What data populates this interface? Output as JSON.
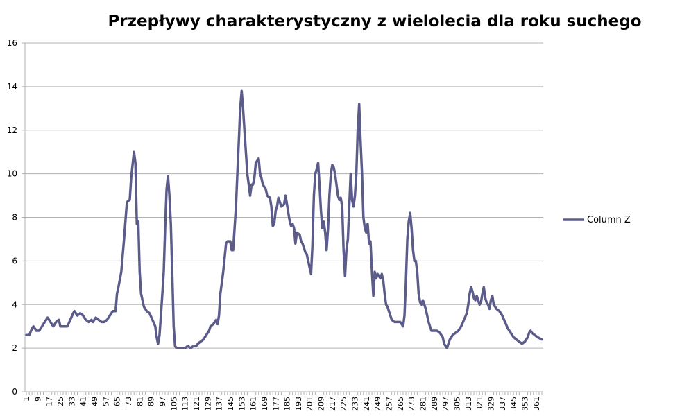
{
  "chart_data": {
    "type": "line",
    "title": "Przepływy charakterystyczny z wielolecia dla roku suchego",
    "xlabel": "",
    "ylabel": "",
    "ylim": [
      0,
      16
    ],
    "y_ticks": [
      "0",
      "2",
      "4",
      "6",
      "8",
      "10",
      "12",
      "14",
      "16"
    ],
    "x_range": [
      1,
      365
    ],
    "x_tick_labels": [
      "1",
      "9",
      "17",
      "25",
      "33",
      "41",
      "49",
      "57",
      "65",
      "73",
      "81",
      "89",
      "97",
      "105",
      "113",
      "121",
      "129",
      "137",
      "145",
      "153",
      "161",
      "169",
      "177",
      "185",
      "193",
      "201",
      "209",
      "217",
      "225",
      "233",
      "241",
      "249",
      "257",
      "265",
      "273",
      "281",
      "289",
      "297",
      "305",
      "313",
      "321",
      "329",
      "337",
      "345",
      "353",
      "361"
    ],
    "grid": "horizontal",
    "legend_position": "right",
    "series": [
      {
        "name": "Column Z",
        "color": "#5c5c8a",
        "points": [
          [
            1,
            2.6
          ],
          [
            3,
            2.6
          ],
          [
            5,
            2.9
          ],
          [
            6,
            3.0
          ],
          [
            8,
            2.8
          ],
          [
            10,
            2.8
          ],
          [
            12,
            3.0
          ],
          [
            14,
            3.2
          ],
          [
            16,
            3.4
          ],
          [
            18,
            3.2
          ],
          [
            20,
            3.0
          ],
          [
            22,
            3.2
          ],
          [
            24,
            3.3
          ],
          [
            25,
            3.0
          ],
          [
            27,
            3.0
          ],
          [
            29,
            3.0
          ],
          [
            30,
            3.0
          ],
          [
            32,
            3.3
          ],
          [
            34,
            3.6
          ],
          [
            35,
            3.7
          ],
          [
            37,
            3.5
          ],
          [
            39,
            3.6
          ],
          [
            41,
            3.5
          ],
          [
            43,
            3.3
          ],
          [
            45,
            3.2
          ],
          [
            47,
            3.3
          ],
          [
            48,
            3.2
          ],
          [
            50,
            3.4
          ],
          [
            52,
            3.3
          ],
          [
            54,
            3.2
          ],
          [
            56,
            3.2
          ],
          [
            58,
            3.3
          ],
          [
            60,
            3.5
          ],
          [
            62,
            3.7
          ],
          [
            64,
            3.7
          ],
          [
            65,
            4.5
          ],
          [
            66,
            4.8
          ],
          [
            68,
            5.5
          ],
          [
            70,
            7.0
          ],
          [
            72,
            8.7
          ],
          [
            74,
            8.8
          ],
          [
            75,
            9.8
          ],
          [
            77,
            11.0
          ],
          [
            78,
            10.5
          ],
          [
            79,
            7.7
          ],
          [
            80,
            7.8
          ],
          [
            81,
            5.5
          ],
          [
            82,
            4.5
          ],
          [
            84,
            3.9
          ],
          [
            86,
            3.7
          ],
          [
            88,
            3.6
          ],
          [
            90,
            3.3
          ],
          [
            92,
            3.0
          ],
          [
            93,
            2.5
          ],
          [
            94,
            2.2
          ],
          [
            95,
            2.6
          ],
          [
            96,
            3.5
          ],
          [
            97,
            4.5
          ],
          [
            98,
            5.5
          ],
          [
            99,
            7.5
          ],
          [
            100,
            9.3
          ],
          [
            101,
            9.9
          ],
          [
            102,
            9.0
          ],
          [
            103,
            7.7
          ],
          [
            104,
            5.5
          ],
          [
            105,
            3.0
          ],
          [
            106,
            2.1
          ],
          [
            107,
            2.0
          ],
          [
            110,
            2.0
          ],
          [
            113,
            2.0
          ],
          [
            115,
            2.1
          ],
          [
            117,
            2.0
          ],
          [
            119,
            2.1
          ],
          [
            121,
            2.1
          ],
          [
            122,
            2.2
          ],
          [
            124,
            2.3
          ],
          [
            126,
            2.4
          ],
          [
            128,
            2.6
          ],
          [
            130,
            2.8
          ],
          [
            131,
            3.0
          ],
          [
            133,
            3.1
          ],
          [
            135,
            3.3
          ],
          [
            136,
            3.1
          ],
          [
            137,
            3.5
          ],
          [
            138,
            4.5
          ],
          [
            139,
            5.0
          ],
          [
            140,
            5.5
          ],
          [
            142,
            6.8
          ],
          [
            143,
            6.9
          ],
          [
            145,
            6.9
          ],
          [
            146,
            6.5
          ],
          [
            147,
            6.5
          ],
          [
            148,
            7.5
          ],
          [
            149,
            8.5
          ],
          [
            150,
            10.0
          ],
          [
            151,
            11.5
          ],
          [
            152,
            13.0
          ],
          [
            153,
            13.8
          ],
          [
            154,
            13.0
          ],
          [
            155,
            12.0
          ],
          [
            156,
            11.0
          ],
          [
            157,
            10.0
          ],
          [
            158,
            9.5
          ],
          [
            159,
            9.0
          ],
          [
            160,
            9.5
          ],
          [
            161,
            9.5
          ],
          [
            162,
            9.8
          ],
          [
            163,
            10.5
          ],
          [
            165,
            10.7
          ],
          [
            166,
            10.0
          ],
          [
            167,
            9.8
          ],
          [
            168,
            9.5
          ],
          [
            170,
            9.3
          ],
          [
            171,
            9.0
          ],
          [
            173,
            8.9
          ],
          [
            174,
            8.5
          ],
          [
            175,
            7.6
          ],
          [
            176,
            7.7
          ],
          [
            177,
            8.3
          ],
          [
            178,
            8.5
          ],
          [
            179,
            8.9
          ],
          [
            180,
            8.7
          ],
          [
            181,
            8.5
          ],
          [
            183,
            8.6
          ],
          [
            184,
            9.0
          ],
          [
            185,
            8.6
          ],
          [
            186,
            8.2
          ],
          [
            187,
            7.8
          ],
          [
            188,
            7.6
          ],
          [
            189,
            7.7
          ],
          [
            190,
            7.5
          ],
          [
            191,
            6.8
          ],
          [
            192,
            7.3
          ],
          [
            194,
            7.2
          ],
          [
            195,
            6.9
          ],
          [
            196,
            6.8
          ],
          [
            197,
            6.6
          ],
          [
            198,
            6.4
          ],
          [
            199,
            6.3
          ],
          [
            200,
            6.0
          ],
          [
            201,
            5.7
          ],
          [
            202,
            5.4
          ],
          [
            203,
            6.7
          ],
          [
            204,
            9.0
          ],
          [
            205,
            10.0
          ],
          [
            206,
            10.2
          ],
          [
            207,
            10.5
          ],
          [
            208,
            9.5
          ],
          [
            209,
            8.3
          ],
          [
            210,
            7.5
          ],
          [
            211,
            7.8
          ],
          [
            212,
            7.3
          ],
          [
            213,
            6.5
          ],
          [
            214,
            7.5
          ],
          [
            215,
            9.0
          ],
          [
            216,
            10.0
          ],
          [
            217,
            10.4
          ],
          [
            218,
            10.3
          ],
          [
            219,
            10.0
          ],
          [
            220,
            9.5
          ],
          [
            221,
            9.0
          ],
          [
            222,
            8.8
          ],
          [
            223,
            8.9
          ],
          [
            224,
            8.5
          ],
          [
            225,
            6.5
          ],
          [
            226,
            5.3
          ],
          [
            227,
            6.5
          ],
          [
            228,
            7.0
          ],
          [
            229,
            8.5
          ],
          [
            230,
            10.0
          ],
          [
            231,
            8.8
          ],
          [
            232,
            8.5
          ],
          [
            233,
            9.0
          ],
          [
            234,
            10.0
          ],
          [
            235,
            12.0
          ],
          [
            236,
            13.2
          ],
          [
            237,
            11.5
          ],
          [
            238,
            10.0
          ],
          [
            239,
            8.0
          ],
          [
            240,
            7.5
          ],
          [
            241,
            7.3
          ],
          [
            242,
            7.7
          ],
          [
            243,
            6.8
          ],
          [
            244,
            6.9
          ],
          [
            245,
            5.5
          ],
          [
            246,
            4.4
          ],
          [
            247,
            5.5
          ],
          [
            248,
            5.2
          ],
          [
            249,
            5.4
          ],
          [
            250,
            5.3
          ],
          [
            251,
            5.2
          ],
          [
            252,
            5.4
          ],
          [
            253,
            5.1
          ],
          [
            254,
            4.5
          ],
          [
            255,
            4.0
          ],
          [
            256,
            3.9
          ],
          [
            257,
            3.7
          ],
          [
            258,
            3.5
          ],
          [
            259,
            3.3
          ],
          [
            261,
            3.2
          ],
          [
            263,
            3.2
          ],
          [
            265,
            3.2
          ],
          [
            266,
            3.1
          ],
          [
            267,
            3.0
          ],
          [
            268,
            3.5
          ],
          [
            269,
            5.0
          ],
          [
            270,
            7.0
          ],
          [
            271,
            7.8
          ],
          [
            272,
            8.2
          ],
          [
            273,
            7.5
          ],
          [
            274,
            6.5
          ],
          [
            275,
            6.0
          ],
          [
            276,
            6.0
          ],
          [
            277,
            5.5
          ],
          [
            278,
            4.5
          ],
          [
            279,
            4.1
          ],
          [
            280,
            4.0
          ],
          [
            281,
            4.2
          ],
          [
            282,
            4.0
          ],
          [
            283,
            3.8
          ],
          [
            284,
            3.5
          ],
          [
            285,
            3.2
          ],
          [
            286,
            3.0
          ],
          [
            287,
            2.8
          ],
          [
            289,
            2.8
          ],
          [
            291,
            2.8
          ],
          [
            293,
            2.7
          ],
          [
            295,
            2.5
          ],
          [
            296,
            2.2
          ],
          [
            297,
            2.1
          ],
          [
            298,
            2.0
          ],
          [
            299,
            2.2
          ],
          [
            300,
            2.4
          ],
          [
            302,
            2.6
          ],
          [
            304,
            2.7
          ],
          [
            306,
            2.8
          ],
          [
            308,
            3.0
          ],
          [
            310,
            3.3
          ],
          [
            312,
            3.6
          ],
          [
            313,
            4.0
          ],
          [
            314,
            4.5
          ],
          [
            315,
            4.8
          ],
          [
            316,
            4.6
          ],
          [
            317,
            4.3
          ],
          [
            318,
            4.2
          ],
          [
            319,
            4.4
          ],
          [
            320,
            4.2
          ],
          [
            321,
            4.0
          ],
          [
            322,
            4.1
          ],
          [
            323,
            4.5
          ],
          [
            324,
            4.8
          ],
          [
            325,
            4.3
          ],
          [
            326,
            4.1
          ],
          [
            327,
            4.0
          ],
          [
            328,
            3.8
          ],
          [
            329,
            4.2
          ],
          [
            330,
            4.4
          ],
          [
            331,
            4.0
          ],
          [
            333,
            3.8
          ],
          [
            335,
            3.7
          ],
          [
            337,
            3.5
          ],
          [
            339,
            3.2
          ],
          [
            341,
            2.9
          ],
          [
            343,
            2.7
          ],
          [
            345,
            2.5
          ],
          [
            347,
            2.4
          ],
          [
            349,
            2.3
          ],
          [
            351,
            2.2
          ],
          [
            353,
            2.3
          ],
          [
            355,
            2.5
          ],
          [
            356,
            2.7
          ],
          [
            357,
            2.8
          ],
          [
            358,
            2.7
          ],
          [
            360,
            2.6
          ],
          [
            362,
            2.5
          ],
          [
            365,
            2.4
          ]
        ]
      }
    ]
  }
}
